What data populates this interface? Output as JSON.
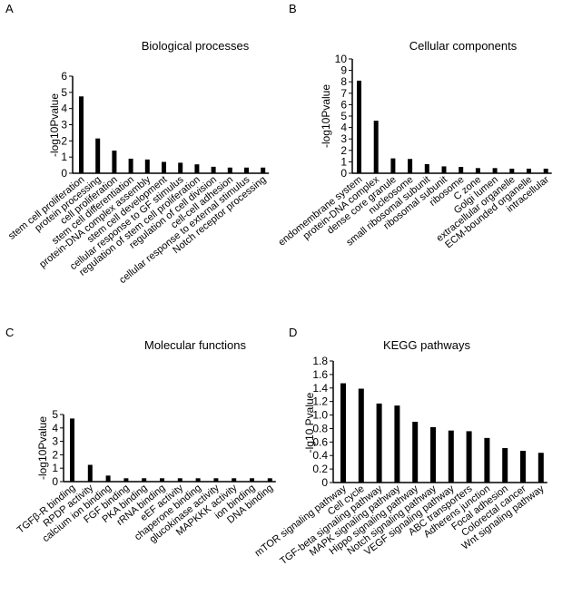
{
  "colors": {
    "bar": "#000000",
    "axis": "#000000",
    "background": "#ffffff"
  },
  "chart_data": [
    {
      "panel": "A",
      "type": "bar",
      "title": "Biological processes",
      "ylabel": "-log10Pvalue",
      "xlabel": "",
      "ylim": [
        0,
        6
      ],
      "yticks": [
        0,
        1,
        2,
        3,
        4,
        5,
        6
      ],
      "categories": [
        "stem cell proliferation",
        "protein processing",
        "cell proliferation",
        "stem cell differentiation",
        "protein-DNA complex assembly",
        "stem cell development",
        "cellular response to GF stimulus",
        "regulation of stem cell proliferation",
        "regulation of cell division",
        "cell-cell adhesion",
        "cellular response to external stimulus",
        "Notch receptor processing"
      ],
      "values": [
        4.75,
        2.15,
        1.4,
        0.9,
        0.85,
        0.7,
        0.65,
        0.55,
        0.4,
        0.35,
        0.35,
        0.35
      ]
    },
    {
      "panel": "B",
      "type": "bar",
      "title": "Cellular components",
      "ylabel": "-log10Pvalue",
      "xlabel": "",
      "ylim": [
        0,
        10
      ],
      "yticks": [
        0,
        1,
        2,
        3,
        4,
        5,
        6,
        7,
        8,
        9,
        10
      ],
      "categories": [
        "endomembrane system",
        "protein-DNA complex",
        "dense core granule",
        "nucleosome",
        "small ribosomal subunit",
        "ribosomal subunit",
        "ribosome",
        "C zone",
        "Golgi lumen",
        "extracellular organelle",
        "ECM-bounded organelle",
        "intracellular"
      ],
      "values": [
        8.1,
        4.6,
        1.3,
        1.25,
        0.8,
        0.6,
        0.55,
        0.45,
        0.45,
        0.4,
        0.4,
        0.4
      ]
    },
    {
      "panel": "C",
      "type": "bar",
      "title": "Molecular functions",
      "ylabel": "-log10Pvalue",
      "xlabel": "",
      "ylim": [
        0,
        5
      ],
      "yticks": [
        0,
        1,
        2,
        3,
        4,
        5
      ],
      "categories": [
        "TGFβ-R binding",
        "RPDP activity",
        "calcium ion binding",
        "FGF binding",
        "PKA binding",
        "rRNA binding",
        "eEF activity",
        "chaperone binding",
        "glucokinase activity",
        "MAPKKK activity",
        "ion binding",
        "DNA binding"
      ],
      "values": [
        4.7,
        1.25,
        0.45,
        0.25,
        0.25,
        0.25,
        0.25,
        0.25,
        0.25,
        0.25,
        0.25,
        0.25
      ]
    },
    {
      "panel": "D",
      "type": "bar",
      "title": "KEGG pathways",
      "ylabel": "-lg10 Pvalue",
      "xlabel": "",
      "ylim": [
        0,
        1.8
      ],
      "yticks": [
        "0",
        "0.2",
        "0.4",
        "0.6",
        "0.8",
        "1.0",
        "1.2",
        "1.4",
        "1.6",
        "1.8"
      ],
      "categories": [
        "mTOR signaling pathway",
        "Cell cycle",
        "TGF-beta signaling pathway",
        "MAPK signaling pathway",
        "Hippo signaling pathway",
        "Notch signaling pathway",
        "VEGF signaling pathway",
        "ABC transporters",
        "Adherens junction",
        "Focal adhesion",
        "Colorectal cancer",
        "Wnt signaling pathway"
      ],
      "values": [
        1.47,
        1.39,
        1.17,
        1.14,
        0.9,
        0.82,
        0.77,
        0.76,
        0.66,
        0.51,
        0.47,
        0.44
      ]
    }
  ]
}
